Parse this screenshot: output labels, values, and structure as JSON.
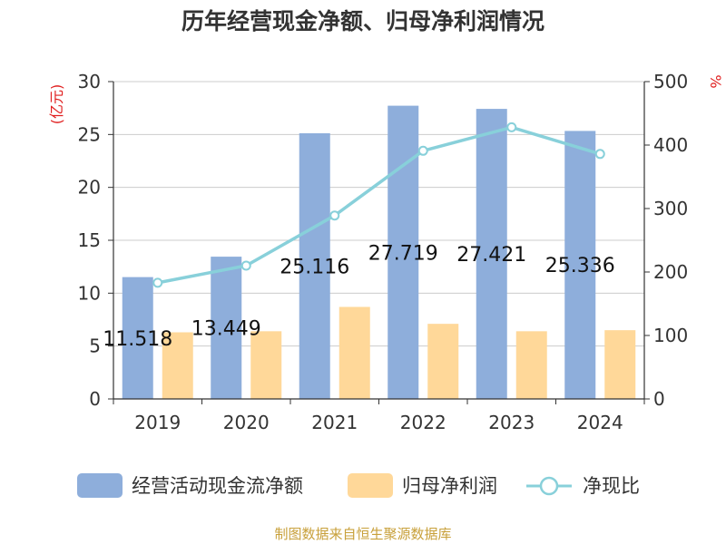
{
  "chart_data": {
    "type": "bar",
    "title": "历年经营现金净额、归母净利润情况",
    "categories": [
      "2019",
      "2020",
      "2021",
      "2022",
      "2023",
      "2024"
    ],
    "series": [
      {
        "name": "经营活动现金流净额",
        "axis": "left",
        "kind": "bar",
        "values": [
          11.518,
          13.449,
          25.116,
          27.719,
          27.421,
          25.336
        ],
        "labels": [
          "11.518",
          "13.449",
          "25.116",
          "27.719",
          "27.421",
          "25.336"
        ]
      },
      {
        "name": "归母净利润",
        "axis": "left",
        "kind": "bar",
        "values": [
          6.3,
          6.4,
          8.7,
          7.1,
          6.4,
          6.5
        ]
      },
      {
        "name": "净现比",
        "axis": "right",
        "kind": "line",
        "values": [
          183,
          210,
          289,
          391,
          428,
          386
        ]
      }
    ],
    "y_left": {
      "unit": "(亿元)",
      "min": 0,
      "max": 30,
      "ticks": [
        0,
        5,
        10,
        15,
        20,
        25,
        30
      ]
    },
    "y_right": {
      "unit": "%",
      "min": 0,
      "max": 500,
      "ticks": [
        0,
        100,
        200,
        300,
        400,
        500
      ]
    },
    "grid": true,
    "legend_position": "bottom"
  },
  "colors": {
    "bar1": "#8eaedb",
    "bar2": "#ffd899",
    "line": "#88d0da",
    "grid": "#cccccc",
    "axis": "#333333"
  },
  "source": "制图数据来自恒生聚源数据库"
}
